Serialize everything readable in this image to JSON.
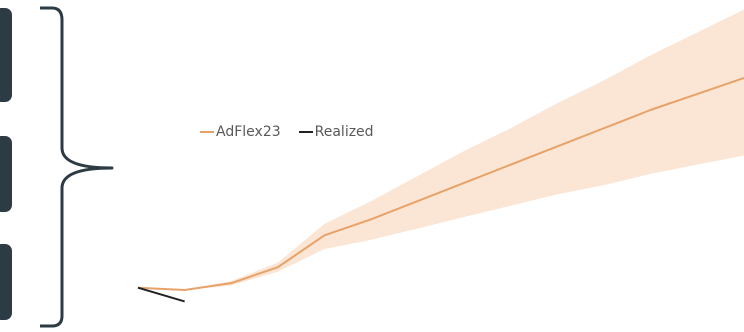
{
  "colors": {
    "bracket": "#2d3b44",
    "box": "#2d3b44",
    "forecast": "#e8a268",
    "band": "#fbe6d6",
    "realized": "#222222"
  },
  "chart_data": {
    "type": "line",
    "legend": {
      "position": "top-left",
      "items": [
        {
          "label": "AdFlex23",
          "color": "#e8a268"
        },
        {
          "label": "Realized",
          "color": "#222222"
        }
      ]
    },
    "x": [
      0,
      1,
      2,
      3,
      4,
      5,
      6,
      7,
      8,
      9,
      10,
      11,
      12,
      13
    ],
    "xlim": [
      0,
      13
    ],
    "ylim": [
      0,
      100
    ],
    "series": [
      {
        "name": "AdFlex23",
        "values": [
          1.0,
          0.0,
          3.0,
          10.0,
          24.0,
          31.0,
          39.0,
          47.0,
          55.0,
          63.0,
          71.0,
          79.0,
          86.0,
          93.0
        ],
        "band_low": [
          1.0,
          0.0,
          2.0,
          8.0,
          18.0,
          22.0,
          27.0,
          32.0,
          37.0,
          42.0,
          46.0,
          51.0,
          55.0,
          59.0
        ],
        "band_high": [
          1.0,
          0.0,
          4.0,
          12.0,
          29.0,
          39.0,
          50.0,
          61.0,
          71.0,
          82.0,
          92.0,
          103.0,
          113.0,
          123.0
        ]
      },
      {
        "name": "Realized",
        "x": [
          0,
          1
        ],
        "values": [
          1.0,
          -5.0
        ]
      }
    ],
    "grid": false
  }
}
